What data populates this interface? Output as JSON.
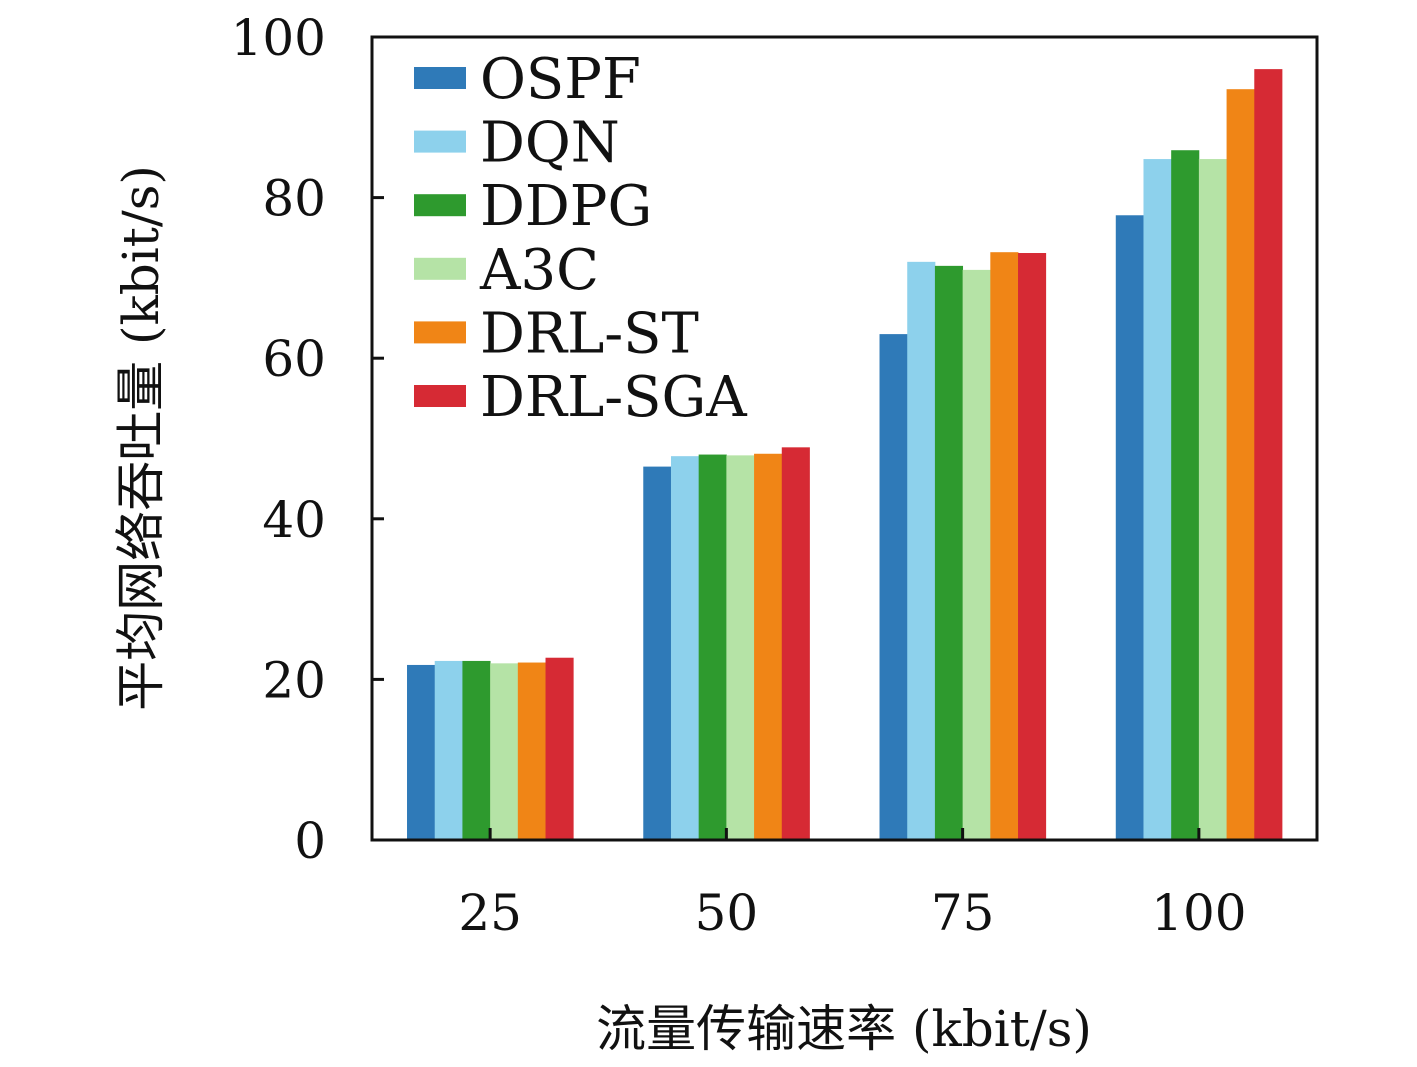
{
  "chart_data": {
    "type": "bar",
    "title": "",
    "xlabel": "流量传输速率 (kbit/s)",
    "ylabel": "平均网络吞吐量 (kbit/s)",
    "categories": [
      "25",
      "50",
      "75",
      "100"
    ],
    "ylim": [
      0,
      100
    ],
    "yticks": [
      "0",
      "20",
      "40",
      "60",
      "80",
      "100"
    ],
    "grid": false,
    "legend_position": "top-left",
    "series": [
      {
        "name": "OSPF",
        "color": "#2f7ab8",
        "values": [
          21.8,
          46.5,
          63.0,
          77.8
        ]
      },
      {
        "name": "DQN",
        "color": "#8dd1ec",
        "values": [
          22.3,
          47.8,
          72.0,
          84.8
        ]
      },
      {
        "name": "DDPG",
        "color": "#2e9a2e",
        "values": [
          22.3,
          48.0,
          71.5,
          85.9
        ]
      },
      {
        "name": "A3C",
        "color": "#b5e3a6",
        "values": [
          22.0,
          47.9,
          71.0,
          84.8
        ]
      },
      {
        "name": "DRL-ST",
        "color": "#f08516",
        "values": [
          22.1,
          48.1,
          73.2,
          93.5
        ]
      },
      {
        "name": "DRL-SGA",
        "color": "#d62a34",
        "values": [
          22.7,
          48.9,
          73.1,
          96.0
        ]
      }
    ]
  }
}
